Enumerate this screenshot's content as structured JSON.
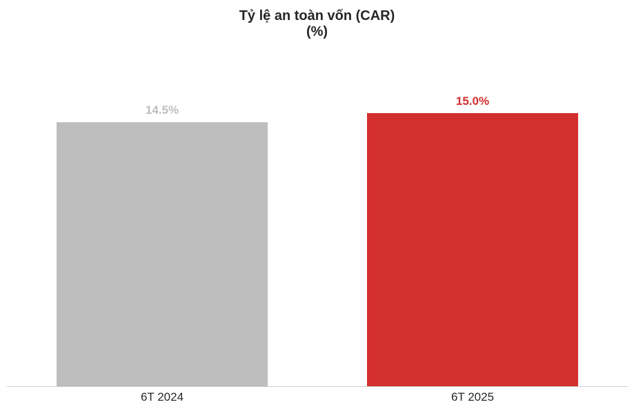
{
  "chart_data": {
    "type": "bar",
    "title": "Tỷ lệ an toàn vốn (CAR)",
    "subtitle": "(%)",
    "categories": [
      "6T 2024",
      "6T 2025"
    ],
    "values": [
      14.5,
      15.0
    ],
    "data_labels": [
      "14.5%",
      "15.0%"
    ],
    "bar_colors": [
      "#bdbdbd",
      "#d32f2f"
    ],
    "label_colors": [
      "#bdbdbd",
      "#d32f2f"
    ],
    "xlabel": "",
    "ylabel": "",
    "ylim": [
      0,
      15.0
    ],
    "grid": false,
    "legend": "none",
    "y_axis_visible": false
  }
}
